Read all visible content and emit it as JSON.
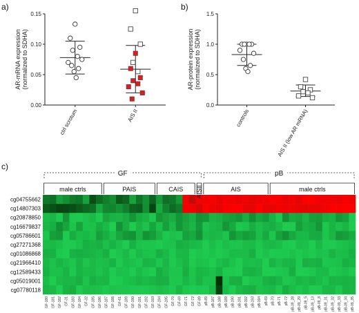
{
  "panels": {
    "a": "a)",
    "b": "b)",
    "c": "c)"
  },
  "chart_data": [
    {
      "type": "scatter",
      "panel": "a",
      "ylabel": "AR-mRNA expression\n(normalized to SDHA)",
      "ylim": [
        0,
        0.15
      ],
      "yticks": [
        "0.00",
        "0.05",
        "0.10",
        "0.15"
      ],
      "categories": [
        "ctrl scrotum",
        "AIS II"
      ],
      "groups": [
        {
          "category": "ctrl scrotum",
          "marker": "circle-open",
          "values": [
            0.133,
            0.11,
            0.095,
            0.09,
            0.08,
            0.07,
            0.075,
            0.065,
            0.06,
            0.055,
            0.045
          ],
          "mean": 0.078,
          "sd_low": 0.051,
          "sd_high": 0.105
        },
        {
          "category": "AIS II",
          "marker_open": "square-open",
          "marker_filled": "square-filled",
          "values_open": [
            0.155,
            0.125,
            0.1,
            0.07,
            0.055
          ],
          "values_filled": [
            0.085,
            0.06,
            0.045,
            0.04,
            0.035,
            0.03,
            0.02,
            0.01
          ],
          "mean": 0.059,
          "sd_low": 0.02,
          "sd_high": 0.098
        }
      ],
      "colors": {
        "filled": "#c62828",
        "stroke": "#333333"
      }
    },
    {
      "type": "scatter",
      "panel": "b",
      "ylabel": "AR-protein expression\n(normalized to SDHA)",
      "ylim": [
        0,
        1.5
      ],
      "yticks": [
        "0.0",
        "0.5",
        "1.0",
        "1.5"
      ],
      "categories": [
        "controls",
        "AIS II (low AR mRNA)"
      ],
      "groups": [
        {
          "category": "controls",
          "marker": "circle-open",
          "values": [
            1.0,
            1.0,
            1.0,
            1.0,
            1.0,
            0.9,
            0.85,
            0.75,
            0.65,
            0.6,
            0.55
          ],
          "mean": 0.83,
          "sd_low": 0.65,
          "sd_high": 1.0
        },
        {
          "category": "AIS II (low AR mRNA)",
          "marker": "square-open",
          "values": [
            0.42,
            0.3,
            0.25,
            0.22,
            0.2,
            0.15,
            0.12
          ],
          "mean": 0.23,
          "sd_low": 0.14,
          "sd_high": 0.33
        }
      ]
    },
    {
      "type": "heatmap",
      "panel": "c",
      "top_groups": [
        "GF",
        "pB"
      ],
      "sub_groups": [
        "male ctrls",
        "PAIS",
        "CAIS",
        "AISII",
        "AIS",
        "male ctrls"
      ],
      "rows": [
        "cg04755662",
        "cg14807303",
        "cg20878850",
        "cg16679837",
        "cg05786601",
        "cg27271368",
        "cg01086868",
        "cg21966410",
        "cg12589433",
        "cg05019001",
        "cg07780118"
      ],
      "columns": [
        "GF-180",
        "GF-181",
        "GF-182",
        "GF-31",
        "GF-183",
        "GF-184",
        "GF-32",
        "GF-185",
        "GF-186",
        "GF-187",
        "GF-188",
        "GF-61",
        "GF-189",
        "GF-190",
        "GF-191",
        "GF-192",
        "GF-193",
        "GF-194",
        "GF-195",
        "GF-70",
        "GF-69",
        "GF-71",
        "GF-72",
        "GF-89",
        "pB-89",
        "pB-187",
        "pB-188",
        "pB-189",
        "pB-190",
        "pB-191",
        "pB-192",
        "pB-193",
        "pB-194",
        "pB-69",
        "pB-70",
        "pB-71",
        "pB-72",
        "pB-09_28",
        "pB-09_29",
        "pB-09_5",
        "pB-09_13",
        "pB-09_8",
        "pB-09_31",
        "pB-09_32",
        "pB-09_33",
        "pB-09_34",
        "pB-09_35"
      ],
      "colors": {
        "low": "#1faa4c",
        "mid": "#000000",
        "high": "#e01010"
      }
    }
  ]
}
